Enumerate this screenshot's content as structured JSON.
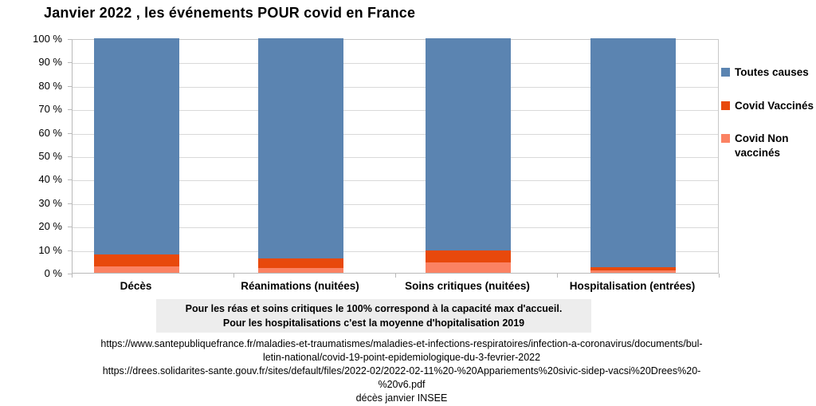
{
  "title": "Janvier 2022 , les événements POUR covid en France",
  "chart_data": {
    "type": "bar",
    "stacked": true,
    "percent_stacked": true,
    "title": "Janvier 2022 , les événements POUR covid en France",
    "categories": [
      "Décès",
      "Réanimations (nuitées)",
      "Soins critiques (nuitées)",
      "Hospitalisation (entrées)"
    ],
    "series": [
      {
        "name": "Covid Non vaccinés",
        "color": "#fb8263",
        "values": [
          2.6,
          2.2,
          4.3,
          0.9
        ]
      },
      {
        "name": "Covid Vaccinés",
        "color": "#e8490c",
        "values": [
          5.1,
          3.8,
          5.1,
          1.4
        ]
      },
      {
        "name": "Toutes causes",
        "color": "#5b84b1",
        "values": [
          92.3,
          94.0,
          90.6,
          97.7
        ]
      }
    ],
    "stack_order": "bottom-to-top",
    "ylim": [
      0,
      100
    ],
    "y_ticks": [
      "100 %",
      "90 %",
      "80 %",
      "70 %",
      "60 %",
      "50 %",
      "40 %",
      "30 %",
      "20 %",
      "10 %",
      "0 %"
    ],
    "grid": true,
    "legend_position": "right",
    "legend": [
      {
        "label": "Toutes causes",
        "color": "#5b84b1"
      },
      {
        "label": "Covid Vaccinés",
        "color": "#e8490c"
      },
      {
        "label": "Covid Non vaccinés",
        "color": "#fb8263"
      }
    ]
  },
  "note": {
    "line1": "Pour les réas et soins critiques le 100% correspond à la capacité max d'accueil.",
    "line2": "Pour les hospitalisations c'est la moyenne d'hopitalisation 2019"
  },
  "footer": {
    "lines": [
      "https://www.santepubliquefrance.fr/maladies-et-traumatismes/maladies-et-infections-respiratoires/infection-a-coronavirus/documents/bul-",
      "letin-national/covid-19-point-epidemiologique-du-3-fevrier-2022",
      "https://drees.solidarites-sante.gouv.fr/sites/default/files/2022-02/2022-02-11%20-%20Appariements%20sivic-sidep-vacsi%20Drees%20-",
      "%20v6.pdf",
      "décès janvier INSEE"
    ]
  }
}
